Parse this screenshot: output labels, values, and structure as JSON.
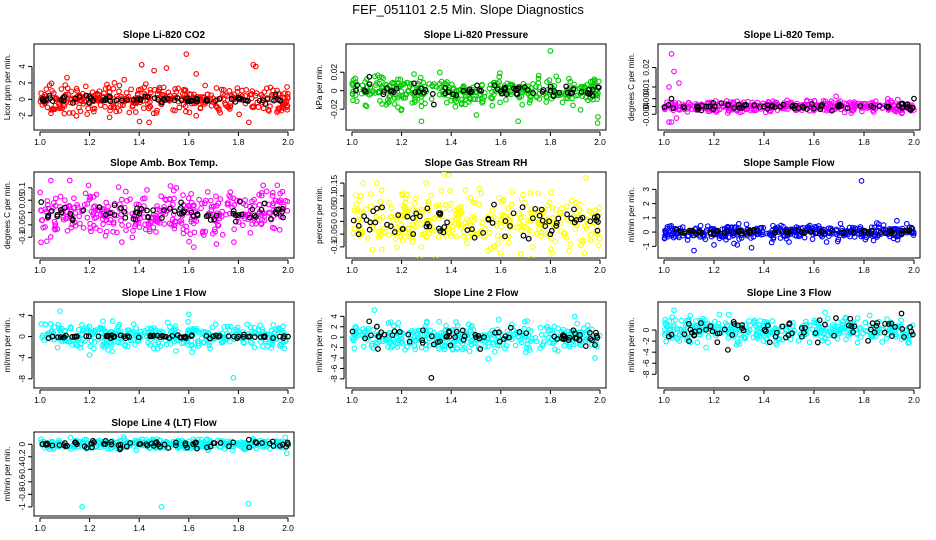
{
  "title": "FEF_051101  2.5 Min. Slope Diagnostics",
  "colors": {
    "red": "#ff0000",
    "green": "#00cc00",
    "magenta": "#ff00ff",
    "yellow": "#ffff00",
    "blue": "#0000ff",
    "cyan": "#00ffff",
    "black": "#000000"
  },
  "chart_data": [
    {
      "type": "scatter",
      "title": "Slope Li-820 CO2",
      "ylabel": "Licor ppm per min.",
      "xlim": [
        1.0,
        2.0
      ],
      "xticks": [
        "1.0",
        "1.2",
        "1.4",
        "1.6",
        "1.8",
        "2.0"
      ],
      "ylim": [
        -3.0,
        6.0
      ],
      "yticks": [
        -2,
        0,
        2,
        4
      ],
      "color": "red",
      "spread": 0.8,
      "black_spread": 0.2,
      "series": [
        {
          "name": "all",
          "color": "red",
          "points": [
            [
              1.41,
              4.2
            ],
            [
              1.46,
              3.5
            ],
            [
              1.51,
              3.8
            ],
            [
              1.59,
              5.5
            ],
            [
              1.63,
              3.1
            ],
            [
              1.86,
              4.2
            ],
            [
              1.87,
              4.0
            ],
            [
              1.06,
              -1.2
            ],
            [
              1.19,
              -1.8
            ],
            [
              1.36,
              -1.6
            ],
            [
              1.44,
              -2.8
            ],
            [
              1.63,
              -2.0
            ],
            [
              1.96,
              -1.4
            ],
            [
              1.27,
              1.8
            ],
            [
              1.3,
              2.0
            ]
          ]
        },
        {
          "name": "selected",
          "color": "black",
          "points": [
            [
              1.2,
              0.3
            ],
            [
              1.4,
              0.0
            ],
            [
              1.6,
              -0.2
            ],
            [
              1.8,
              0.2
            ],
            [
              1.95,
              0.6
            ]
          ]
        }
      ]
    },
    {
      "type": "scatter",
      "title": "Slope Li-820 Pressure",
      "ylabel": "kPa per min.",
      "xlim": [
        1.0,
        2.0
      ],
      "xticks": [
        "1.0",
        "1.2",
        "1.4",
        "1.6",
        "1.8",
        "2.0"
      ],
      "ylim": [
        -0.036,
        0.044
      ],
      "yticks": [
        -0.02,
        0.0,
        0.02
      ],
      "color": "green",
      "spread": 0.008,
      "black_spread": 0.003,
      "series": [
        {
          "name": "all",
          "color": "green",
          "points": [
            [
              1.8,
              0.043
            ],
            [
              1.28,
              -0.033
            ],
            [
              1.67,
              -0.033
            ],
            [
              1.99,
              -0.035
            ],
            [
              1.25,
              0.018
            ],
            [
              1.2,
              -0.02
            ]
          ]
        },
        {
          "name": "selected",
          "color": "black",
          "points": [
            [
              1.07,
              0.015
            ],
            [
              1.25,
              0.008
            ],
            [
              1.33,
              -0.015
            ],
            [
              1.52,
              0.0
            ],
            [
              1.8,
              0.0
            ]
          ]
        }
      ]
    },
    {
      "type": "scatter",
      "title": "Slope Li-820 Temp.",
      "ylabel": "degrees C per min.",
      "xlim": [
        1.0,
        2.0
      ],
      "xticks": [
        "1.0",
        "1.2",
        "1.4",
        "1.6",
        "1.8",
        "2.0"
      ],
      "ylim": [
        -0.009,
        0.029
      ],
      "yticks": [
        -0.004,
        0.0,
        0.004,
        0.01,
        0.02
      ],
      "color": "magenta",
      "spread": 0.0015,
      "black_spread": 0.0008,
      "series": [
        {
          "name": "all",
          "color": "magenta",
          "points": [
            [
              1.03,
              0.027
            ],
            [
              1.04,
              0.018
            ],
            [
              1.02,
              -0.008
            ],
            [
              1.03,
              -0.008
            ],
            [
              1.06,
              0.012
            ],
            [
              1.02,
              0.01
            ],
            [
              1.05,
              -0.006
            ]
          ]
        },
        {
          "name": "selected",
          "color": "black",
          "points": [
            [
              1.03,
              0.004
            ],
            [
              1.15,
              -0.002
            ],
            [
              1.4,
              0.0
            ],
            [
              1.7,
              0.0
            ],
            [
              2.0,
              0.004
            ]
          ]
        }
      ]
    },
    {
      "type": "scatter",
      "title": "Slope Amb. Box Temp.",
      "ylabel": "degrees C per min.",
      "xlim": [
        1.0,
        2.0
      ],
      "xticks": [
        "1.0",
        "1.2",
        "1.4",
        "1.6",
        "1.8",
        "2.0"
      ],
      "ylim": [
        -0.16,
        0.14
      ],
      "yticks": [
        -0.1,
        -0.05,
        0.0,
        0.05,
        0.1
      ],
      "color": "magenta",
      "spread": 0.05,
      "black_spread": 0.02,
      "series": [
        {
          "name": "all",
          "color": "magenta",
          "points": [
            [
              1.12,
              0.13
            ],
            [
              1.62,
              -0.14
            ],
            [
              1.55,
              0.1
            ],
            [
              1.33,
              -0.12
            ],
            [
              1.9,
              0.11
            ]
          ]
        },
        {
          "name": "selected",
          "color": "black",
          "points": [
            [
              1.1,
              0.02
            ],
            [
              1.3,
              -0.01
            ],
            [
              1.5,
              0.01
            ],
            [
              1.8,
              -0.01
            ],
            [
              1.98,
              -0.02
            ]
          ]
        }
      ]
    },
    {
      "type": "scatter",
      "title": "Slope Gas Stream RH",
      "ylabel": "percent per min.",
      "xlim": [
        1.0,
        2.0
      ],
      "xticks": [
        "1.0",
        "1.2",
        "1.4",
        "1.6",
        "1.8",
        "2.0"
      ],
      "ylim": [
        -0.12,
        0.17
      ],
      "yticks": [
        -0.1,
        -0.05,
        0.0,
        0.05,
        0.1,
        0.15
      ],
      "color": "yellow",
      "spread": 0.055,
      "black_spread": 0.03,
      "series": [
        {
          "name": "all",
          "color": "yellow",
          "points": [
            [
              1.1,
              0.15
            ],
            [
              1.36,
              0.12
            ],
            [
              1.75,
              0.11
            ],
            [
              1.12,
              -0.11
            ],
            [
              1.82,
              -0.08
            ]
          ]
        },
        {
          "name": "selected",
          "color": "black",
          "points": [
            [
              1.1,
              0.05
            ],
            [
              1.3,
              -0.02
            ],
            [
              1.55,
              0.01
            ],
            [
              1.8,
              -0.05
            ],
            [
              1.99,
              0.02
            ]
          ]
        }
      ]
    },
    {
      "type": "scatter",
      "title": "Slope Sample Flow",
      "ylabel": "ml/min per min.",
      "xlim": [
        1.0,
        2.0
      ],
      "xticks": [
        "1.0",
        "1.2",
        "1.4",
        "1.6",
        "1.8",
        "2.0"
      ],
      "ylim": [
        -1.4,
        3.8
      ],
      "yticks": [
        -1,
        0,
        1,
        2,
        3
      ],
      "color": "blue",
      "spread": 0.25,
      "black_spread": 0.08,
      "series": [
        {
          "name": "all",
          "color": "blue",
          "points": [
            [
              1.79,
              3.6
            ],
            [
              1.35,
              -1.1
            ],
            [
              1.12,
              -1.3
            ],
            [
              1.2,
              -0.9
            ],
            [
              1.28,
              -0.8
            ],
            [
              1.5,
              -0.7
            ]
          ]
        },
        {
          "name": "selected",
          "color": "black",
          "points": [
            [
              1.05,
              0.2
            ],
            [
              1.3,
              0.1
            ],
            [
              1.5,
              0.0
            ],
            [
              1.8,
              0.1
            ],
            [
              1.99,
              0.3
            ]
          ]
        }
      ]
    },
    {
      "type": "scatter",
      "title": "Slope Line 1 Flow",
      "ylabel": "ml/min per min.",
      "xlim": [
        1.0,
        2.0
      ],
      "xticks": [
        "1.0",
        "1.2",
        "1.4",
        "1.6",
        "1.8",
        "2.0"
      ],
      "ylim": [
        -8.6,
        5.4
      ],
      "yticks": [
        -8,
        -4,
        0,
        4
      ],
      "color": "cyan",
      "spread": 1.2,
      "black_spread": 0.15,
      "series": [
        {
          "name": "all",
          "color": "cyan",
          "points": [
            [
              1.08,
              4.8
            ],
            [
              1.78,
              -7.8
            ],
            [
              1.6,
              4.2
            ],
            [
              1.2,
              -3.5
            ]
          ]
        },
        {
          "name": "selected",
          "color": "black",
          "points": [
            [
              1.05,
              0.0
            ],
            [
              1.3,
              0.0
            ],
            [
              1.5,
              0.0
            ],
            [
              1.8,
              0.0
            ],
            [
              2.0,
              0.0
            ]
          ]
        }
      ]
    },
    {
      "type": "scatter",
      "title": "Slope Line 2 Flow",
      "ylabel": "ml/min per min.",
      "xlim": [
        1.0,
        2.0
      ],
      "xticks": [
        "1.0",
        "1.2",
        "1.4",
        "1.6",
        "1.8",
        "2.0"
      ],
      "ylim": [
        -8.6,
        5.6
      ],
      "yticks": [
        -8,
        -6,
        -4,
        -2,
        0,
        2,
        4
      ],
      "color": "cyan",
      "spread": 1.3,
      "black_spread": 1.0,
      "series": [
        {
          "name": "all",
          "color": "cyan",
          "points": [
            [
              1.09,
              5.2
            ],
            [
              1.98,
              -4.0
            ],
            [
              1.55,
              -4.2
            ]
          ]
        },
        {
          "name": "selected",
          "color": "black",
          "points": [
            [
              1.32,
              -7.8
            ],
            [
              1.1,
              2.0
            ],
            [
              1.5,
              0.0
            ],
            [
              1.98,
              -1.5
            ]
          ]
        }
      ]
    },
    {
      "type": "scatter",
      "title": "Slope Line 3 Flow",
      "ylabel": "ml/min per min.",
      "xlim": [
        1.0,
        2.0
      ],
      "xticks": [
        "1.0",
        "1.2",
        "1.4",
        "1.6",
        "1.8",
        "2.0"
      ],
      "ylim": [
        -9.4,
        4.0
      ],
      "yticks": [
        -8,
        -6,
        -4,
        -2,
        0
      ],
      "color": "cyan",
      "spread": 1.1,
      "black_spread": 1.1,
      "series": [
        {
          "name": "all",
          "color": "cyan",
          "points": [
            [
              1.04,
              3.6
            ],
            [
              1.98,
              -2.2
            ]
          ]
        },
        {
          "name": "selected",
          "color": "black",
          "points": [
            [
              1.33,
              -8.7
            ],
            [
              1.95,
              3.0
            ],
            [
              1.1,
              -2.0
            ]
          ]
        }
      ]
    },
    {
      "type": "scatter",
      "title": "Slope Line 4 (LT) Flow",
      "ylabel": "ml/min per min.",
      "xlim": [
        1.0,
        2.0
      ],
      "xticks": [
        "1.0",
        "1.2",
        "1.4",
        "1.6",
        "1.8",
        "2.0"
      ],
      "ylim": [
        -1.05,
        0.1
      ],
      "yticks": [
        -1.0,
        -0.8,
        -0.6,
        -0.4,
        -0.2,
        0.0
      ],
      "color": "cyan",
      "spread": 0.04,
      "black_spread": 0.03,
      "series": [
        {
          "name": "all",
          "color": "cyan",
          "points": [
            [
              1.17,
              -1.0
            ],
            [
              1.49,
              -1.0
            ],
            [
              1.84,
              -0.95
            ],
            [
              1.97,
              -0.05
            ]
          ]
        },
        {
          "name": "selected",
          "color": "black",
          "points": [
            [
              1.05,
              -0.02
            ],
            [
              1.4,
              0.0
            ],
            [
              1.7,
              0.02
            ],
            [
              2.0,
              0.0
            ]
          ]
        }
      ]
    }
  ]
}
